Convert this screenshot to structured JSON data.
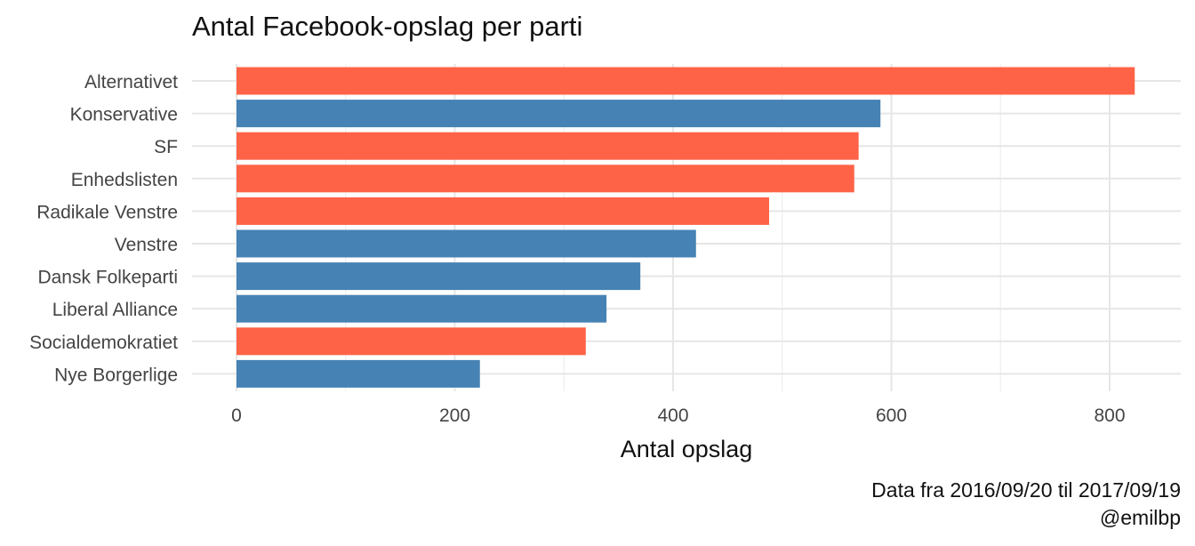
{
  "chart_data": {
    "type": "bar",
    "orientation": "horizontal",
    "title": "Antal Facebook-opslag per parti",
    "xlabel": "Antal opslag",
    "ylabel": "",
    "xlim": [
      0,
      860
    ],
    "xticks": [
      0,
      200,
      400,
      600,
      800
    ],
    "categories": [
      "Alternativet",
      "Konservative",
      "SF",
      "Enhedslisten",
      "Radikale Venstre",
      "Venstre",
      "Dansk Folkeparti",
      "Liberal Alliance",
      "Socialdemokratiet",
      "Nye Borgerlige"
    ],
    "values": [
      823,
      590,
      570,
      566,
      488,
      421,
      370,
      339,
      320,
      223
    ],
    "bar_colors": [
      "#FF6347",
      "#4682B4",
      "#FF6347",
      "#FF6347",
      "#FF6347",
      "#4682B4",
      "#4682B4",
      "#4682B4",
      "#FF6347",
      "#4682B4"
    ],
    "grid": true,
    "caption": [
      "Data fra 2016/09/20 til 2017/09/19",
      "@emilbp"
    ]
  }
}
